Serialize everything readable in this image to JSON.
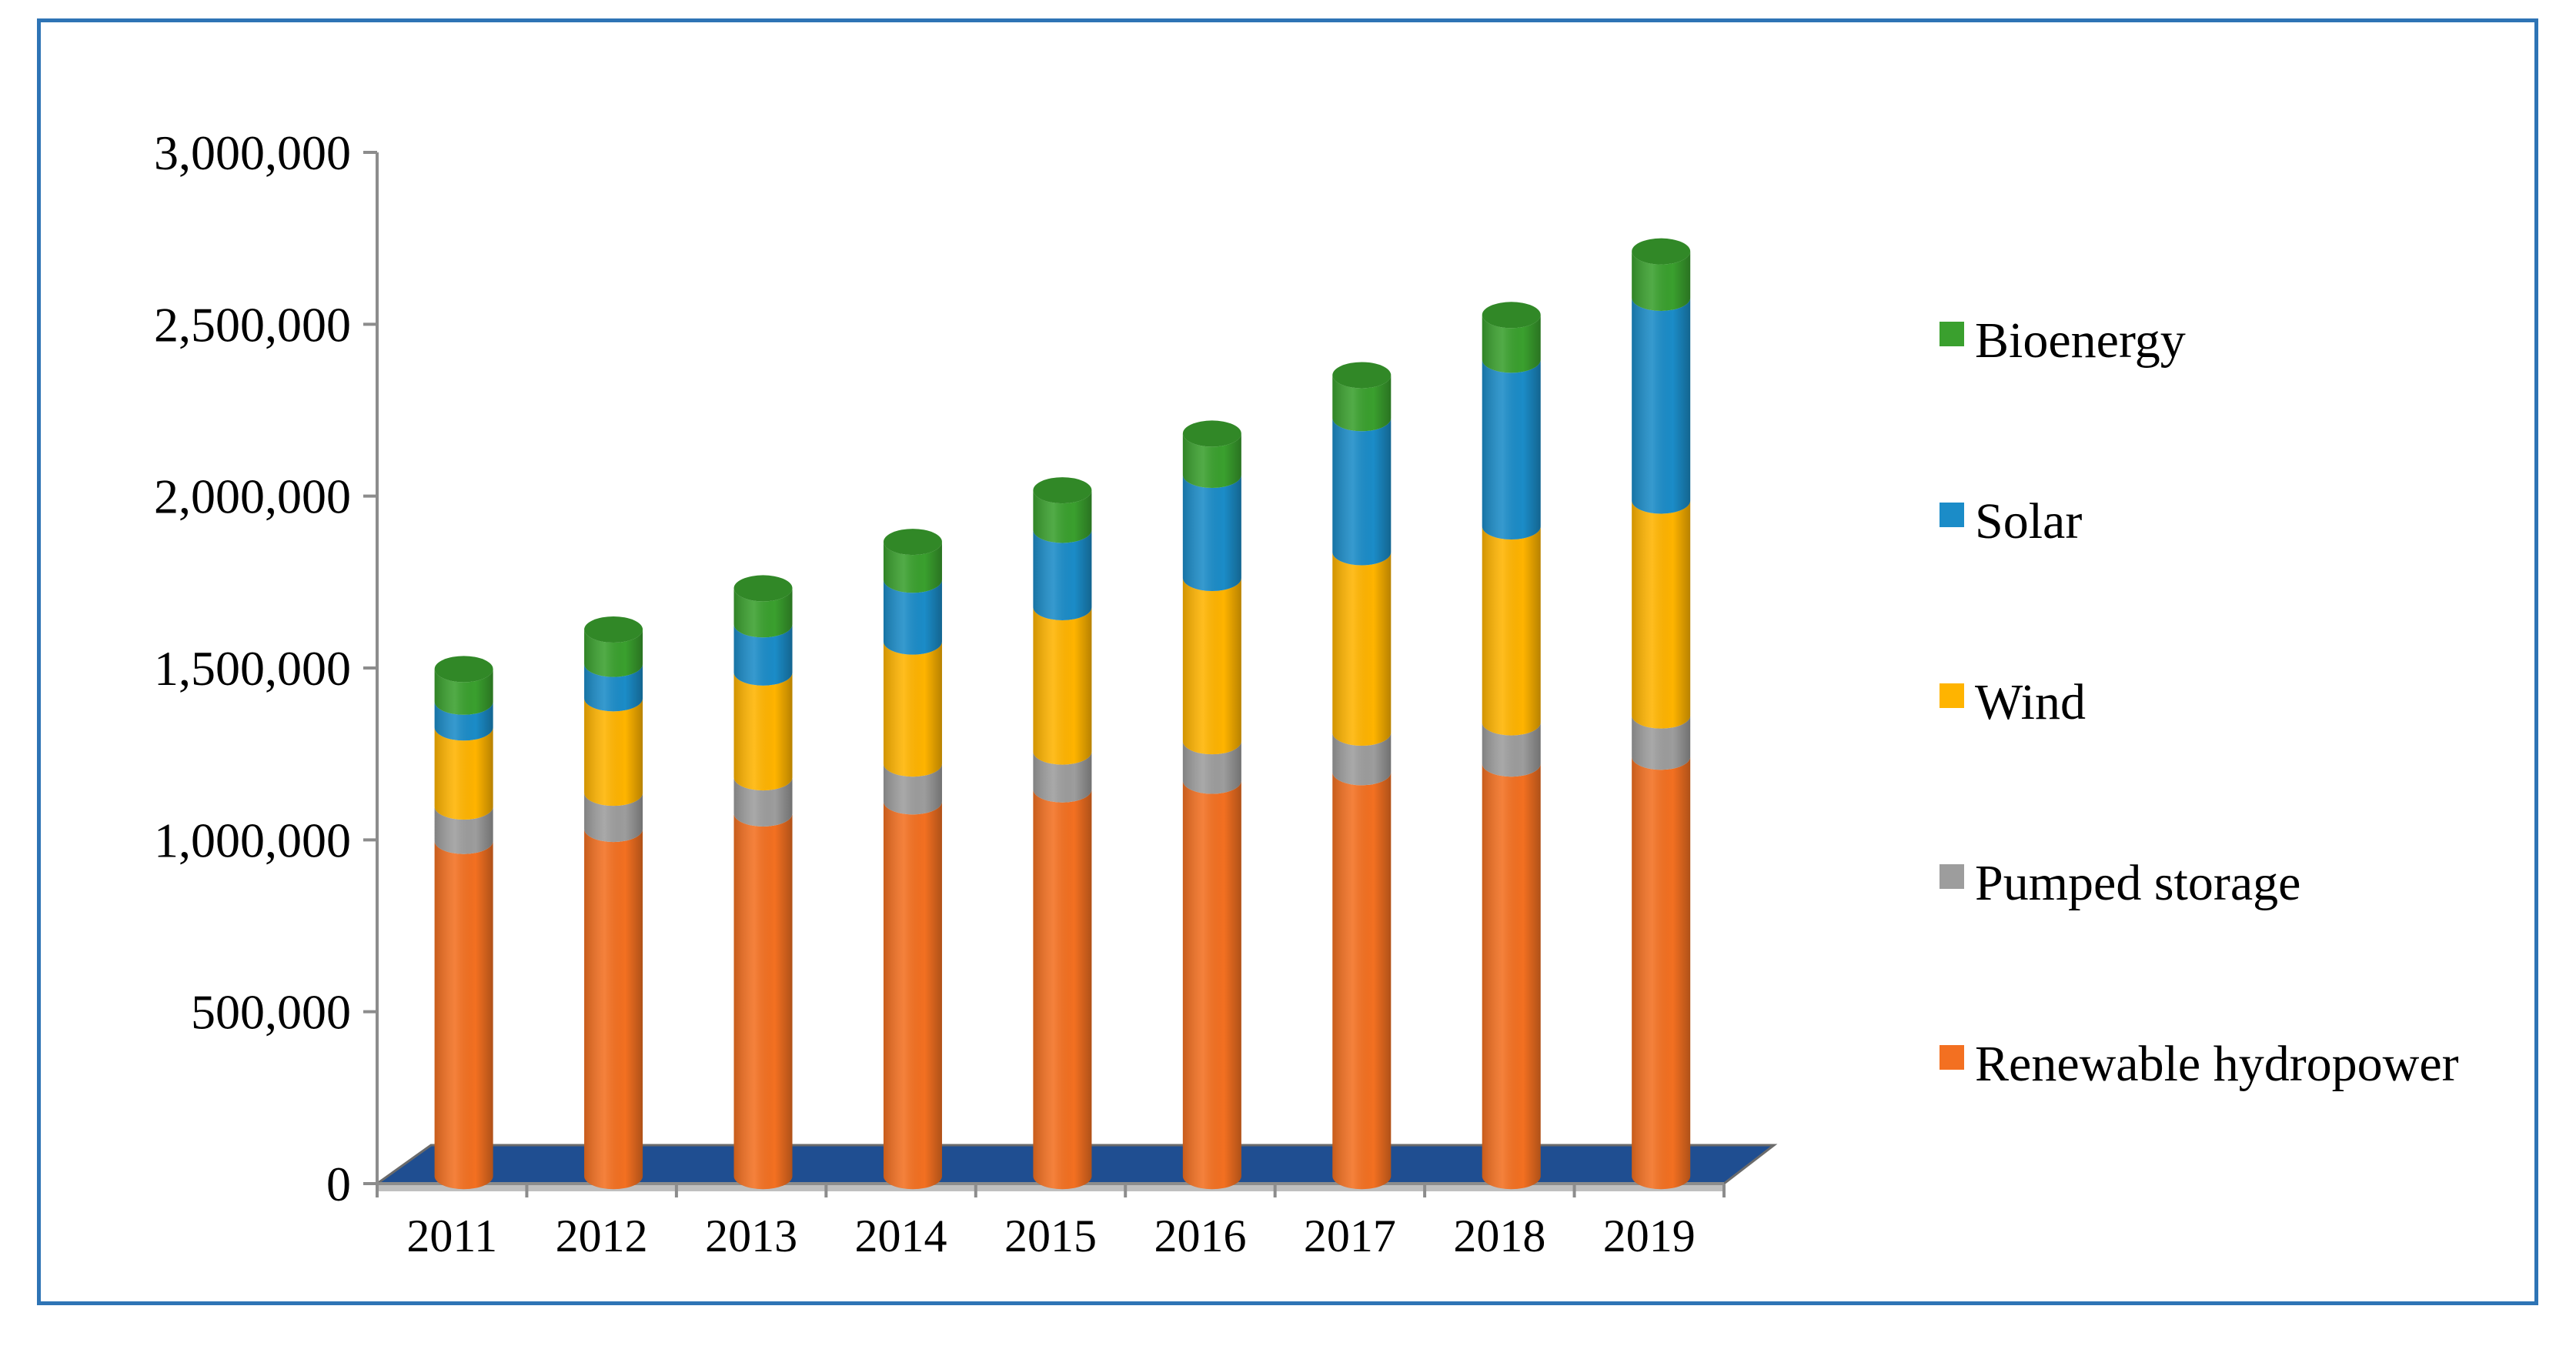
{
  "chart_data": {
    "type": "bar",
    "stacked": true,
    "style": "3d-cylinder",
    "title": "",
    "xlabel": "",
    "ylabel": "",
    "ylim": [
      0,
      3000000
    ],
    "yticks": [
      0,
      500000,
      1000000,
      1500000,
      2000000,
      2500000,
      3000000
    ],
    "ytick_labels": [
      "0",
      "500,000",
      "1,000,000",
      "1,500,000",
      "2,000,000",
      "2,500,000",
      "3,000,000"
    ],
    "grid": false,
    "legend_position": "right",
    "categories": [
      "2011",
      "2012",
      "2013",
      "2014",
      "2015",
      "2016",
      "2017",
      "2018",
      "2019"
    ],
    "series": [
      {
        "name": "Renewable hydropower",
        "color": "#F37021",
        "values": [
          975000,
          1010000,
          1055000,
          1090000,
          1125000,
          1150000,
          1175000,
          1200000,
          1220000
        ]
      },
      {
        "name": "Pumped storage",
        "color": "#9D9D9D",
        "values": [
          100000,
          105000,
          105000,
          110000,
          110000,
          115000,
          115000,
          120000,
          120000
        ]
      },
      {
        "name": "Wind",
        "color": "#FFB400",
        "values": [
          230000,
          275000,
          305000,
          355000,
          420000,
          475000,
          525000,
          570000,
          625000
        ]
      },
      {
        "name": "Solar",
        "color": "#1B8CC8",
        "values": [
          75000,
          100000,
          140000,
          180000,
          225000,
          300000,
          390000,
          485000,
          590000
        ]
      },
      {
        "name": "Bioenergy",
        "color": "#3AA02E",
        "values": [
          95000,
          100000,
          105000,
          110000,
          115000,
          120000,
          125000,
          130000,
          135000
        ]
      }
    ],
    "legend_order": [
      "Bioenergy",
      "Solar",
      "Wind",
      "Pumped storage",
      "Renewable hydropower"
    ],
    "floor_color": "#1F4E91"
  }
}
